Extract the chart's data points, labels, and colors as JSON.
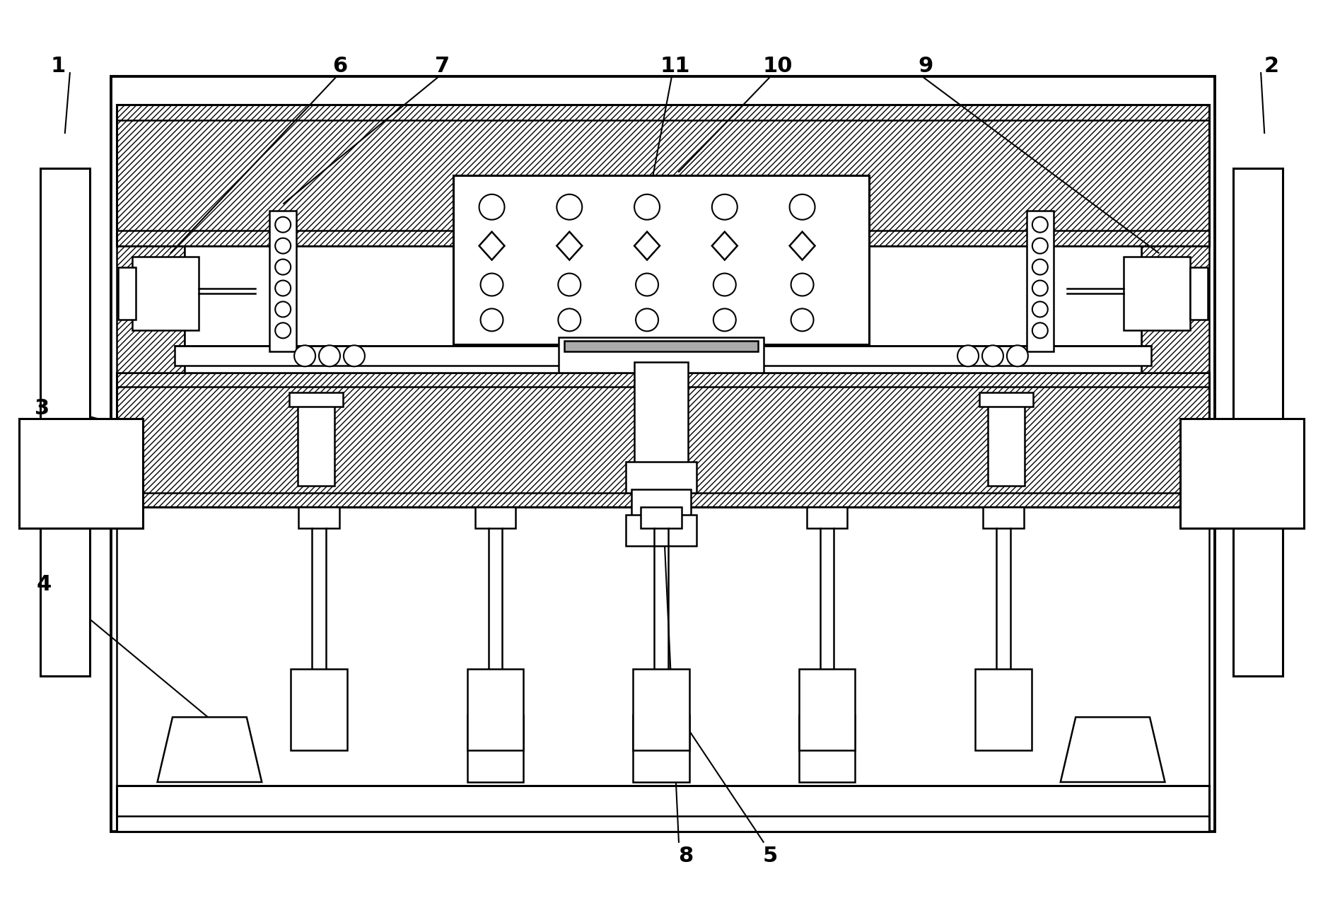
{
  "bg_color": "#ffffff",
  "line_color": "#000000",
  "fig_width": 18.71,
  "fig_height": 12.77,
  "dpi": 100
}
